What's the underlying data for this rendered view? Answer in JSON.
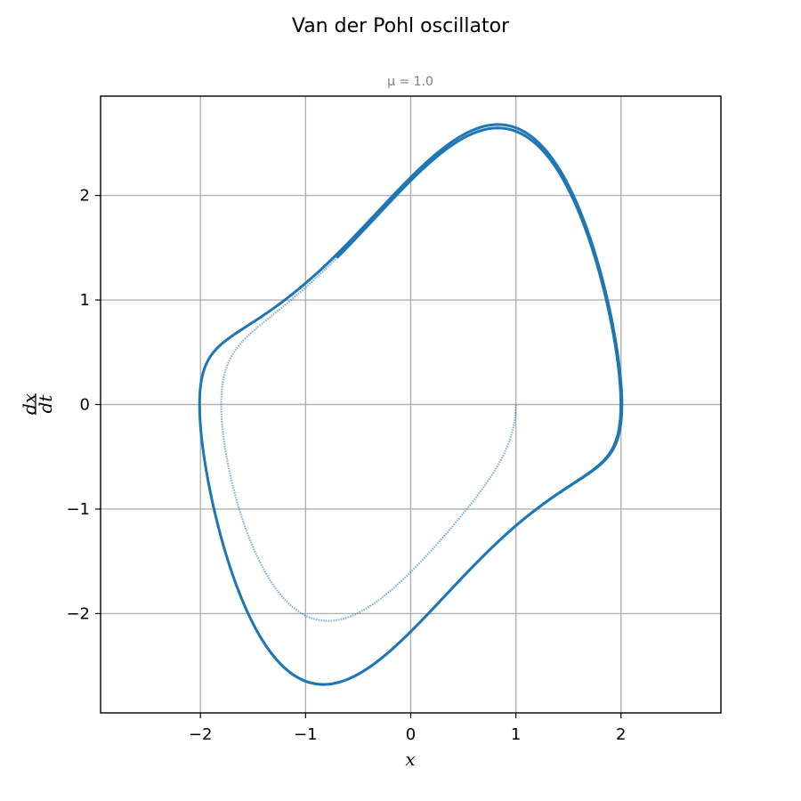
{
  "figure": {
    "title": "Van der Pohl oscillator"
  },
  "chart_data": {
    "type": "scatter",
    "title": "μ = 1.0",
    "xlabel": "x",
    "ylabel": "dx/dt",
    "ylabel_num": "dx",
    "ylabel_den": "dt",
    "xlim": [
      -2.95,
      2.95
    ],
    "ylim": [
      -2.95,
      2.95
    ],
    "xticks": [
      -2,
      -1,
      0,
      1,
      2
    ],
    "yticks": [
      -2,
      -1,
      0,
      1,
      2
    ],
    "xtick_labels": [
      "−2",
      "−1",
      "0",
      "1",
      "2"
    ],
    "ytick_labels": [
      "−2",
      "−1",
      "0",
      "1",
      "2"
    ],
    "grid": true,
    "mu": 1.0,
    "initial_state": {
      "x": 1.0,
      "dxdt": 0.0
    },
    "series": [
      {
        "color": "#1f77b4",
        "description": "Van der Pol phase trajectory starting at (1, 0), spiraling outward onto the limit cycle",
        "points": [
          [
            1.0,
            0.0
          ],
          [
            0.97,
            -0.5
          ],
          [
            0.8,
            -1.0
          ],
          [
            0.4,
            -1.45
          ],
          [
            0.0,
            -1.65
          ],
          [
            -0.5,
            -1.95
          ],
          [
            -0.8,
            -2.07
          ],
          [
            -1.2,
            -1.9
          ],
          [
            -1.6,
            -1.2
          ],
          [
            -1.8,
            -0.3
          ],
          [
            -1.75,
            0.5
          ],
          [
            -1.3,
            1.0
          ],
          [
            -0.6,
            1.55
          ],
          [
            0.0,
            2.1
          ],
          [
            0.8,
            2.65
          ],
          [
            1.35,
            2.4
          ],
          [
            1.85,
            1.4
          ],
          [
            2.01,
            0.0
          ],
          [
            1.85,
            -0.5
          ],
          [
            1.4,
            -0.8
          ],
          [
            0.9,
            -1.3
          ],
          [
            0.0,
            -2.2
          ],
          [
            -0.8,
            -2.67
          ],
          [
            -1.4,
            -2.3
          ],
          [
            -2.0,
            0.0
          ],
          [
            -1.9,
            0.4
          ],
          [
            -1.4,
            0.8
          ],
          [
            -1.0,
            1.15
          ],
          [
            0.0,
            2.2
          ],
          [
            0.8,
            2.67
          ],
          [
            1.4,
            2.3
          ],
          [
            2.0,
            0.0
          ],
          [
            1.9,
            -0.4
          ],
          [
            1.4,
            -0.8
          ],
          [
            1.0,
            -1.15
          ],
          [
            0.0,
            -2.2
          ],
          [
            -0.8,
            -2.67
          ]
        ]
      }
    ]
  }
}
